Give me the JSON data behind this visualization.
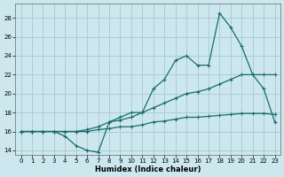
{
  "xlabel": "Humidex (Indice chaleur)",
  "bg_color": "#cce8ee",
  "line_color": "#1a6b6b",
  "grid_color": "#aacdd6",
  "xlim": [
    -0.5,
    23.5
  ],
  "ylim": [
    13.5,
    29.5
  ],
  "xticks": [
    0,
    1,
    2,
    3,
    4,
    5,
    6,
    7,
    8,
    9,
    10,
    11,
    12,
    13,
    14,
    15,
    16,
    17,
    18,
    19,
    20,
    21,
    22,
    23
  ],
  "yticks": [
    14,
    16,
    18,
    20,
    22,
    24,
    26,
    28
  ],
  "curve1_x": [
    0,
    1,
    2,
    3,
    4,
    5,
    6,
    7,
    8,
    9,
    10,
    11,
    12,
    13,
    14,
    15,
    16,
    17,
    18,
    19,
    20,
    21,
    22,
    23
  ],
  "curve1_y": [
    16,
    16,
    16,
    16,
    15.5,
    14.5,
    14,
    13.8,
    17,
    17.5,
    18,
    18,
    20.5,
    21.5,
    23.5,
    24,
    23,
    23,
    28.5,
    27,
    25,
    22,
    20.5,
    17
  ],
  "curve2_x": [
    0,
    1,
    2,
    3,
    4,
    5,
    6,
    7,
    8,
    9,
    10,
    11,
    12,
    13,
    14,
    15,
    16,
    17,
    18,
    19,
    20,
    21,
    22,
    23
  ],
  "curve2_y": [
    16,
    16,
    16,
    16,
    16,
    16,
    16.2,
    16.5,
    17,
    17.2,
    17.5,
    18,
    18.5,
    19,
    19.5,
    20,
    20.2,
    20.5,
    21,
    21.5,
    22,
    22,
    22,
    22
  ],
  "curve3_x": [
    0,
    1,
    2,
    3,
    4,
    5,
    6,
    7,
    8,
    9,
    10,
    11,
    12,
    13,
    14,
    15,
    16,
    17,
    18,
    19,
    20,
    21,
    22,
    23
  ],
  "curve3_y": [
    16,
    16,
    16,
    16,
    16,
    16,
    16,
    16.2,
    16.3,
    16.5,
    16.5,
    16.7,
    17,
    17.1,
    17.3,
    17.5,
    17.5,
    17.6,
    17.7,
    17.8,
    17.9,
    17.9,
    17.9,
    17.8
  ]
}
